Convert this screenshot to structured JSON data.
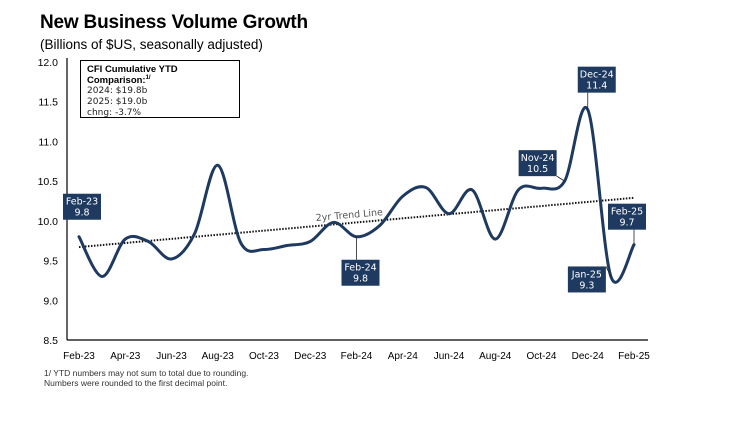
{
  "chart_data": {
    "type": "line",
    "title": "New Business Volume Growth",
    "subtitle": "(Billions of $US, seasonally adjusted)",
    "xlabel": "",
    "ylabel": "",
    "ylim": [
      8.5,
      12.0
    ],
    "yticks": [
      "12.0",
      "11.5",
      "11.0",
      "10.5",
      "10.0",
      "9.5",
      "9.0",
      "8.5"
    ],
    "ytick_values": [
      12.0,
      11.5,
      11.0,
      10.5,
      10.0,
      9.5,
      9.0,
      8.5
    ],
    "x": [
      "Feb-23",
      "Mar-23",
      "Apr-23",
      "May-23",
      "Jun-23",
      "Jul-23",
      "Aug-23",
      "Sep-23",
      "Oct-23",
      "Nov-23",
      "Dec-23",
      "Jan-24",
      "Feb-24",
      "Mar-24",
      "Apr-24",
      "May-24",
      "Jun-24",
      "Jul-24",
      "Aug-24",
      "Sep-24",
      "Oct-24",
      "Nov-24",
      "Dec-24",
      "Jan-25",
      "Feb-25"
    ],
    "xtick_labels": [
      "Feb-23",
      "Apr-23",
      "Jun-23",
      "Aug-23",
      "Oct-23",
      "Dec-23",
      "Feb-24",
      "Apr-24",
      "Jun-24",
      "Aug-24",
      "Oct-24",
      "Dec-24",
      "Feb-25"
    ],
    "series": [
      {
        "name": "New Business Volume",
        "color": "#1f3a60",
        "values": [
          9.8,
          9.3,
          9.77,
          9.74,
          9.52,
          9.84,
          10.7,
          9.72,
          9.64,
          9.69,
          9.74,
          9.98,
          9.8,
          9.94,
          10.31,
          10.42,
          10.09,
          10.39,
          9.77,
          10.39,
          10.41,
          10.5,
          11.4,
          9.3,
          9.7
        ]
      }
    ],
    "trend_line": {
      "label": "2yr Trend Line",
      "start": 9.67,
      "end": 10.29
    },
    "annotations": [
      {
        "month": "Feb-23",
        "label": "Feb-23",
        "value": "9.8"
      },
      {
        "month": "Feb-24",
        "label": "Feb-24",
        "value": "9.8"
      },
      {
        "month": "Nov-24",
        "label": "Nov-24",
        "value": "10.5"
      },
      {
        "month": "Dec-24",
        "label": "Dec-24",
        "value": "11.4"
      },
      {
        "month": "Jan-25",
        "label": "Jan-25",
        "value": "9.3"
      },
      {
        "month": "Feb-25",
        "label": "Feb-25",
        "value": "9.7"
      }
    ],
    "annotation_color": "#1f3a60",
    "grid": false,
    "legend": "none"
  },
  "ytd_box": {
    "title": "CFI Cumulative YTD Comparison:",
    "footnote_marker": "1/",
    "lines": [
      "2024: $19.8b",
      "2025: $19.0b",
      "chng: -3.7%"
    ]
  },
  "footnotes": [
    "1/ YTD numbers may not sum to total due to rounding.",
    "Numbers were rounded to the first decimal point."
  ]
}
